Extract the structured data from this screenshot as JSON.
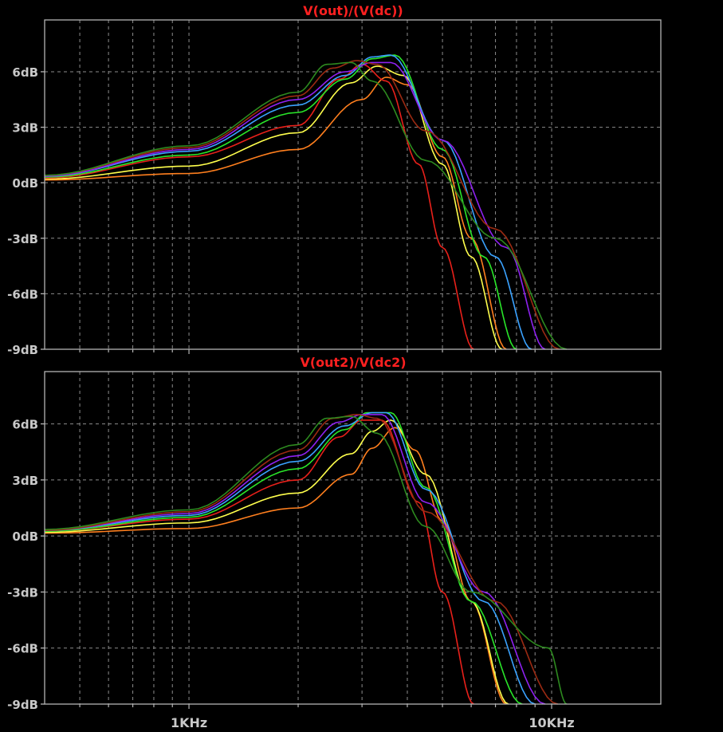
{
  "chart_data": [
    {
      "type": "line",
      "title": "V(out)/(V(dc))",
      "xscale": "log",
      "xlim": [
        400,
        20000
      ],
      "ylim": [
        -9,
        8.8
      ],
      "yticks": [
        6,
        3,
        0,
        -3,
        -6,
        -9
      ],
      "ytick_labels": [
        "6dB",
        "3dB",
        "0dB",
        "-3dB",
        "-6dB",
        "-9dB"
      ],
      "grid": true,
      "series": [
        {
          "color": "#ff7f1e",
          "x": [
            400,
            1000,
            2000,
            3000,
            3500,
            4000,
            5000,
            6000,
            7500
          ],
          "values": [
            0.15,
            0.5,
            1.8,
            4.5,
            5.7,
            5.3,
            1.4,
            -3.0,
            -9.0
          ]
        },
        {
          "color": "#ffff4c",
          "x": [
            400,
            1000,
            2000,
            2800,
            3300,
            3900,
            5000,
            6000,
            7300
          ],
          "values": [
            0.2,
            0.9,
            2.7,
            5.4,
            6.3,
            5.8,
            1.0,
            -4.0,
            -9.0
          ]
        },
        {
          "color": "#e8201a",
          "x": [
            400,
            1000,
            2000,
            2600,
            3000,
            3500,
            4300,
            5000,
            6100
          ],
          "values": [
            0.25,
            1.4,
            3.1,
            5.6,
            6.4,
            5.5,
            1.0,
            -3.5,
            -9.0
          ]
        },
        {
          "color": "#29e629",
          "x": [
            400,
            1000,
            2000,
            2700,
            3200,
            3700,
            5000,
            6500,
            8000
          ],
          "values": [
            0.3,
            1.5,
            3.8,
            5.6,
            6.7,
            6.9,
            1.8,
            -4.0,
            -9.0
          ]
        },
        {
          "color": "#3aa2ff",
          "x": [
            400,
            1000,
            2000,
            2700,
            3200,
            3600,
            5000,
            7000,
            8800
          ],
          "values": [
            0.35,
            1.7,
            4.2,
            5.8,
            6.8,
            6.9,
            2.3,
            -4.0,
            -9.0
          ]
        },
        {
          "color": "#8e21f1",
          "x": [
            400,
            1000,
            2000,
            2700,
            3200,
            3600,
            5000,
            7500,
            9600
          ],
          "values": [
            0.35,
            1.8,
            4.5,
            6.0,
            6.5,
            6.5,
            2.3,
            -3.5,
            -9.0
          ]
        },
        {
          "color": "#9b2a12",
          "x": [
            400,
            1000,
            2000,
            2500,
            2900,
            3300,
            4500,
            7000,
            10500
          ],
          "values": [
            0.4,
            1.9,
            4.7,
            6.2,
            6.6,
            6.4,
            2.8,
            -2.5,
            -9.0
          ]
        },
        {
          "color": "#2d8a1f",
          "x": [
            400,
            1000,
            2000,
            2400,
            2800,
            3200,
            4500,
            7000,
            11000
          ],
          "values": [
            0.4,
            2.0,
            4.9,
            6.4,
            6.5,
            5.5,
            1.2,
            -3.0,
            -9.0
          ]
        }
      ]
    },
    {
      "type": "line",
      "title": "V(out2)/V(dc2)",
      "xscale": "log",
      "xlim": [
        400,
        20000
      ],
      "ylim": [
        -9,
        8.8
      ],
      "yticks": [
        6,
        3,
        0,
        -3,
        -6,
        -9
      ],
      "ytick_labels": [
        "6dB",
        "3dB",
        "0dB",
        "-3dB",
        "-6dB",
        "-9dB"
      ],
      "xticks": [
        1000,
        10000
      ],
      "xtick_labels": [
        "1KHz",
        "10KHz"
      ],
      "grid": true,
      "series": [
        {
          "color": "#ff7f1e",
          "x": [
            400,
            1000,
            2000,
            2800,
            3200,
            3700,
            4200,
            5000,
            6000,
            7500
          ],
          "values": [
            0.15,
            0.4,
            1.5,
            3.3,
            4.7,
            5.8,
            4.6,
            0.8,
            -3.5,
            -9.0
          ]
        },
        {
          "color": "#ffff4c",
          "x": [
            400,
            1000,
            2000,
            2800,
            3200,
            3600,
            4500,
            6000,
            7600
          ],
          "values": [
            0.2,
            0.7,
            2.3,
            4.4,
            5.6,
            6.2,
            3.3,
            -3.5,
            -9.0
          ]
        },
        {
          "color": "#e8201a",
          "x": [
            400,
            1000,
            2000,
            2600,
            3000,
            3400,
            4300,
            5000,
            6100
          ],
          "values": [
            0.25,
            0.9,
            3.0,
            5.3,
            6.2,
            6.2,
            1.8,
            -3.0,
            -9.0
          ]
        },
        {
          "color": "#29e629",
          "x": [
            400,
            1000,
            2000,
            2700,
            3100,
            3600,
            4500,
            6000,
            8300
          ],
          "values": [
            0.25,
            1.0,
            3.6,
            5.7,
            6.6,
            6.6,
            2.6,
            -3.5,
            -9.0
          ]
        },
        {
          "color": "#3aa2ff",
          "x": [
            400,
            1000,
            2000,
            2700,
            3200,
            3500,
            4500,
            6500,
            9000
          ],
          "values": [
            0.3,
            1.1,
            4.0,
            5.9,
            6.6,
            6.6,
            2.5,
            -3.5,
            -9.0
          ]
        },
        {
          "color": "#8e21f1",
          "x": [
            400,
            1000,
            2000,
            2600,
            3000,
            3400,
            4500,
            6500,
            9600
          ],
          "values": [
            0.3,
            1.2,
            4.3,
            6.1,
            6.5,
            6.5,
            1.8,
            -3.0,
            -9.0
          ]
        },
        {
          "color": "#9b2a12",
          "x": [
            400,
            1000,
            2000,
            2500,
            2900,
            3300,
            4500,
            7000,
            10400
          ],
          "values": [
            0.3,
            1.3,
            4.6,
            6.3,
            6.5,
            6.3,
            1.3,
            -3.5,
            -9.0
          ]
        },
        {
          "color": "#2d8a1f",
          "x": [
            400,
            1000,
            2000,
            2400,
            2800,
            3300,
            4500,
            6000,
            9800,
            11000
          ],
          "values": [
            0.35,
            1.4,
            4.9,
            6.3,
            6.4,
            5.5,
            0.5,
            -3.0,
            -6.0,
            -9.0
          ]
        }
      ]
    }
  ],
  "colors": {
    "background": "#000000",
    "frame": "#b4b4b4",
    "grid": "#8c8c8c",
    "title": "#ff2020",
    "tick_label": "#c8c8c8"
  }
}
